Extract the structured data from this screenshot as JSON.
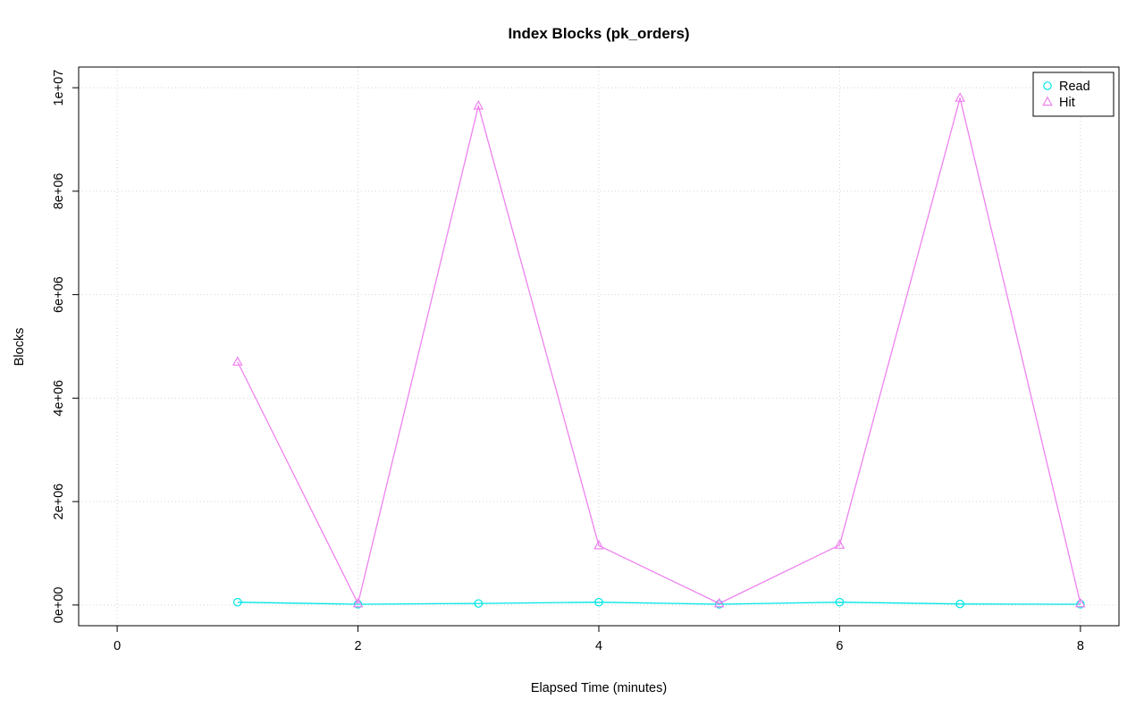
{
  "chart_data": {
    "type": "line",
    "title": "Index Blocks (pk_orders)",
    "xlabel": "Elapsed Time (minutes)",
    "ylabel": "Blocks",
    "x": [
      1,
      2,
      3,
      4,
      5,
      6,
      7,
      8
    ],
    "series": [
      {
        "name": "Read",
        "marker": "circle",
        "color": "#00E5E5",
        "values": [
          55000,
          15000,
          30000,
          55000,
          15000,
          55000,
          20000,
          15000
        ]
      },
      {
        "name": "Hit",
        "marker": "triangle",
        "color": "#EE82EE",
        "values": [
          4700000,
          30000,
          9650000,
          1150000,
          30000,
          1160000,
          9800000,
          30000
        ]
      }
    ],
    "xlim": [
      0,
      8
    ],
    "ylim": [
      0,
      10000000
    ],
    "xticks": [
      0,
      2,
      4,
      6,
      8
    ],
    "xtick_labels": [
      "0",
      "2",
      "4",
      "6",
      "8"
    ],
    "ytick_values": [
      0,
      2000000,
      4000000,
      6000000,
      8000000,
      10000000
    ],
    "ytick_labels": [
      "0e+00",
      "2e+06",
      "4e+06",
      "6e+06",
      "8e+06",
      "1e+07"
    ],
    "grid": true,
    "legend": {
      "position": "top-right",
      "entries": [
        "Read",
        "Hit"
      ]
    },
    "colors": {
      "grid": "#D3D3D3",
      "axis": "#000000",
      "background": "#FFFFFF"
    }
  }
}
